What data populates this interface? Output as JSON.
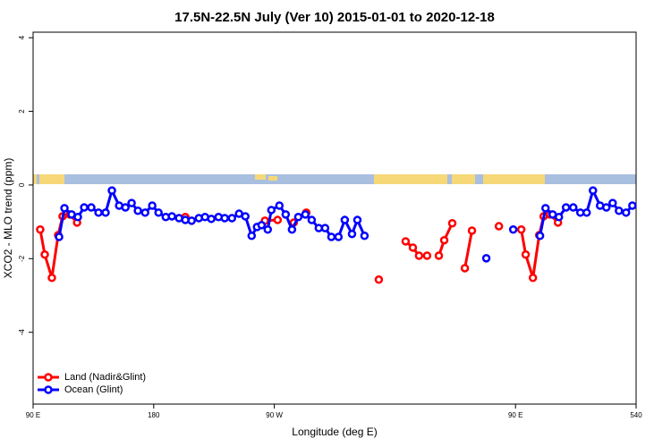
{
  "chart_data": {
    "type": "line",
    "title": "17.5N-22.5N July (Ver 10)   2015-01-01 to 2020-12-18",
    "x_label": "Longitude (deg E)",
    "y_label": "XCO2 - MLO trend (ppm)",
    "xlim": [
      90,
      540
    ],
    "xticks": [
      {
        "value": 90,
        "label": "90 E"
      },
      180,
      {
        "value": 270,
        "label": "90 W"
      },
      {
        "value": 450,
        "label": "90 E"
      },
      540
    ],
    "ylim": [
      -5.95,
      4.15
    ],
    "yticks": [
      4,
      2,
      0,
      -2,
      -4
    ],
    "legend": "bottom-left",
    "series": [
      {
        "name": "Land (Nadir&Glint)",
        "color": "#ff0000",
        "x": [
          95.3,
          98.7,
          104,
          108.7,
          112,
          117.4,
          122.8,
          null,
          203.6,
          null,
          263,
          272.5,
          null,
          284.5,
          293.9,
          null,
          348,
          null,
          368,
          373.4,
          378,
          384,
          null,
          392.8,
          396.8,
          402.8,
          null,
          412.2,
          417.5,
          null,
          437.6,
          null,
          454.3,
          457.6,
          463,
          467.7,
          471,
          475.7,
          481.7
        ],
        "values": [
          -1.21,
          -1.89,
          -2.52,
          -1.36,
          -0.85,
          -0.8,
          -1.02,
          null,
          -0.87,
          null,
          -0.97,
          -0.95,
          null,
          -1.02,
          -0.75,
          null,
          -2.57,
          null,
          -1.53,
          -1.7,
          -1.92,
          -1.92,
          null,
          -1.92,
          -1.5,
          -1.04,
          null,
          -2.26,
          -1.24,
          null,
          -1.12,
          null,
          -1.21,
          -1.89,
          -2.52,
          -1.36,
          -0.85,
          -0.8,
          -1.02
        ]
      },
      {
        "name": "Ocean (Glint)",
        "color": "#0000ff",
        "x": [
          109.4,
          113.4,
          118.7,
          123.4,
          128.1,
          133.4,
          138.8,
          144.1,
          148.8,
          154.2,
          158.9,
          163.5,
          168.2,
          173.6,
          178.9,
          183.6,
          189,
          193.6,
          198.9,
          203.6,
          208.3,
          213.7,
          218.3,
          223,
          228.4,
          233,
          238.4,
          243.7,
          248.4,
          253.1,
          257.1,
          260.5,
          265.1,
          267.8,
          273.8,
          278.5,
          283.2,
          287.9,
          293.2,
          297.9,
          303.2,
          307.9,
          312.6,
          317.9,
          322.6,
          328,
          332,
          337.3,
          null,
          428.2,
          null,
          448.3,
          null,
          468.3,
          472.4,
          477.7,
          482.4,
          487.7,
          493.1,
          498.4,
          503.1,
          507.8,
          513.1,
          517.8,
          522.5,
          527.2,
          532.5,
          537.2
        ],
        "values": [
          -1.41,
          -0.63,
          -0.8,
          -0.87,
          -0.61,
          -0.61,
          -0.75,
          -0.75,
          -0.15,
          -0.56,
          -0.61,
          -0.49,
          -0.7,
          -0.75,
          -0.56,
          -0.75,
          -0.87,
          -0.85,
          -0.9,
          -0.95,
          -0.97,
          -0.9,
          -0.87,
          -0.92,
          -0.87,
          -0.9,
          -0.9,
          -0.78,
          -0.85,
          -1.38,
          -1.14,
          -1.09,
          -1.21,
          -0.68,
          -0.56,
          -0.8,
          -1.21,
          -0.87,
          -0.8,
          -0.95,
          -1.17,
          -1.17,
          -1.41,
          -1.41,
          -0.95,
          -1.33,
          -0.95,
          -1.38,
          null,
          -1.99,
          null,
          -1.21,
          null,
          -1.38,
          -0.63,
          -0.8,
          -0.87,
          -0.61,
          -0.61,
          -0.75,
          -0.75,
          -0.15,
          -0.56,
          -0.61,
          -0.49,
          -0.7,
          -0.75,
          -0.56
        ]
      }
    ]
  }
}
